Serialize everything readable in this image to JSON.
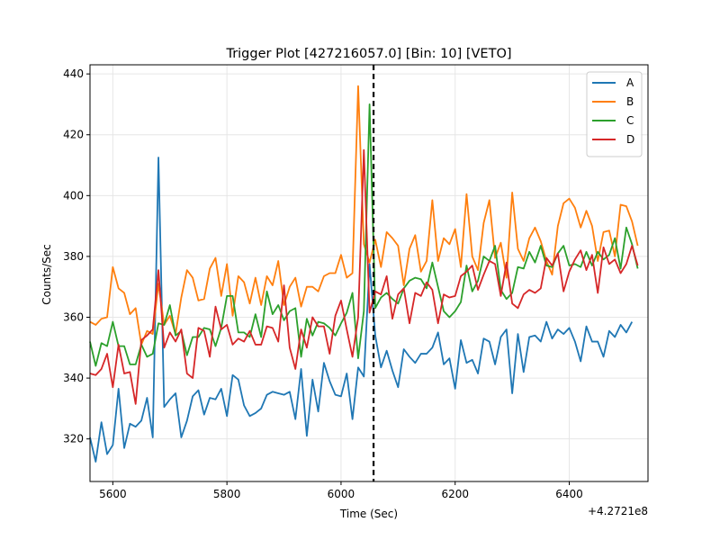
{
  "chart_data": {
    "type": "line",
    "title": "Trigger Plot [427216057.0] [Bin: 10] [VETO]",
    "xlabel": "Time (Sec)",
    "ylabel": "Counts/Sec",
    "x_offset_label": "+4.2721e8",
    "xlim": [
      5560,
      6538
    ],
    "ylim": [
      306,
      443
    ],
    "xticks": [
      5600,
      5800,
      6000,
      6200,
      6400
    ],
    "yticks": [
      320,
      340,
      360,
      380,
      400,
      420,
      440
    ],
    "grid": true,
    "legend_position": "top-right",
    "trigger_line_x": 6057,
    "x_start": 5560,
    "x_step": 10,
    "series": [
      {
        "name": "A",
        "color": "#1f77b4",
        "values": [
          320.5,
          312.5,
          325.5,
          315,
          318,
          336.5,
          317,
          325,
          324,
          326,
          333.5,
          320.5,
          412.5,
          330.5,
          333,
          335,
          320.5,
          326,
          334,
          336,
          328,
          333.5,
          333,
          336.5,
          327.5,
          341,
          339.5,
          331,
          327.5,
          328.5,
          330,
          334.5,
          335.5,
          335,
          334.5,
          335.5,
          326.5,
          343,
          321,
          339.5,
          329,
          345,
          339,
          334.5,
          334,
          341.5,
          326.5,
          343.5,
          340.5,
          377.5,
          354,
          343.5,
          349,
          342.5,
          337,
          349.5,
          347,
          345,
          348,
          348,
          350,
          355,
          344.5,
          346.5,
          336.5,
          352.5,
          345,
          346,
          341.5,
          353,
          352,
          344.5,
          353.5,
          356,
          335,
          354.5,
          342,
          353.5,
          354,
          352,
          358.5,
          353,
          356,
          354.5,
          356.5,
          352,
          345.5,
          357,
          352,
          352,
          347,
          355.5,
          353.5,
          357.5,
          355,
          358.5
        ]
      },
      {
        "name": "B",
        "color": "#ff7f0e",
        "values": [
          358.5,
          357.5,
          359.5,
          360,
          376.5,
          369.5,
          368,
          361,
          363,
          351,
          355.5,
          354.5,
          371,
          357.5,
          360.5,
          354.5,
          366.5,
          375.5,
          373,
          365.5,
          366,
          376,
          379.5,
          367,
          377.5,
          360.5,
          373.5,
          371.5,
          364.5,
          373,
          364,
          373.5,
          370.5,
          378.5,
          364,
          370,
          373,
          363.5,
          370,
          370,
          368.5,
          373.5,
          374.5,
          374.5,
          380.5,
          373,
          374.5,
          436,
          384,
          378,
          385.5,
          376.5,
          388,
          386,
          383.5,
          370.5,
          382.5,
          387,
          375,
          378.5,
          398.5,
          378.5,
          386,
          384,
          389,
          376.5,
          400.5,
          380,
          375.5,
          391,
          398.5,
          379.5,
          384.5,
          373,
          401,
          382.5,
          378.5,
          386,
          389.5,
          385,
          378.5,
          374,
          390,
          397.5,
          399,
          396,
          389.5,
          395,
          390,
          378.5,
          388,
          388.5,
          380,
          397,
          396.5,
          391.5,
          383.5
        ]
      },
      {
        "name": "C",
        "color": "#2ca02c",
        "values": [
          352,
          344,
          351.5,
          350.5,
          358.5,
          350.5,
          350.5,
          344.5,
          344.5,
          351,
          347,
          348,
          358,
          357.5,
          364,
          354,
          355.5,
          347.5,
          353.5,
          353.5,
          356.5,
          356,
          350.5,
          356.5,
          367,
          367,
          355,
          355,
          353.5,
          361,
          353.5,
          368.5,
          361,
          364,
          359,
          362,
          363,
          347,
          359.5,
          354,
          358.5,
          358,
          356.5,
          354,
          358,
          361.5,
          368,
          346.5,
          362,
          430,
          363,
          366.5,
          368,
          366,
          364.5,
          369.5,
          372,
          373,
          372.5,
          369.5,
          378,
          370,
          362,
          360,
          362,
          365,
          377,
          368.5,
          372,
          380,
          378.5,
          383.5,
          369,
          366,
          368,
          376.5,
          376,
          381.5,
          378,
          383.5,
          377,
          376.5,
          381,
          383.5,
          377,
          377.5,
          376.5,
          381.5,
          377,
          381.5,
          379,
          380.5,
          386,
          376,
          389.5,
          384,
          376
        ]
      },
      {
        "name": "D",
        "color": "#d62728",
        "values": [
          341.5,
          341,
          343,
          348,
          337,
          351,
          341.5,
          342,
          331.5,
          352.5,
          354,
          356,
          375.5,
          350,
          355,
          352,
          356,
          341.5,
          340,
          356.5,
          355.5,
          347,
          363.5,
          356,
          357.5,
          351,
          353,
          352,
          355.5,
          351,
          351,
          357,
          356.5,
          352,
          370.5,
          350,
          343,
          356,
          350,
          360,
          357,
          357,
          348,
          360.5,
          365.5,
          356,
          347,
          360,
          415,
          361.5,
          368.5,
          367.5,
          373.5,
          359.5,
          367.5,
          369.5,
          358,
          368,
          367,
          371.5,
          369,
          358,
          367.5,
          366.5,
          367,
          373.5,
          375,
          377,
          369,
          374,
          378.5,
          377.5,
          367,
          378,
          364.5,
          363,
          367.5,
          369,
          368,
          369.5,
          379.5,
          377,
          381,
          368.5,
          375,
          379,
          382,
          375.5,
          380.5,
          368,
          383,
          377.5,
          379,
          374.5,
          377.5,
          383.5,
          377
        ]
      }
    ]
  }
}
